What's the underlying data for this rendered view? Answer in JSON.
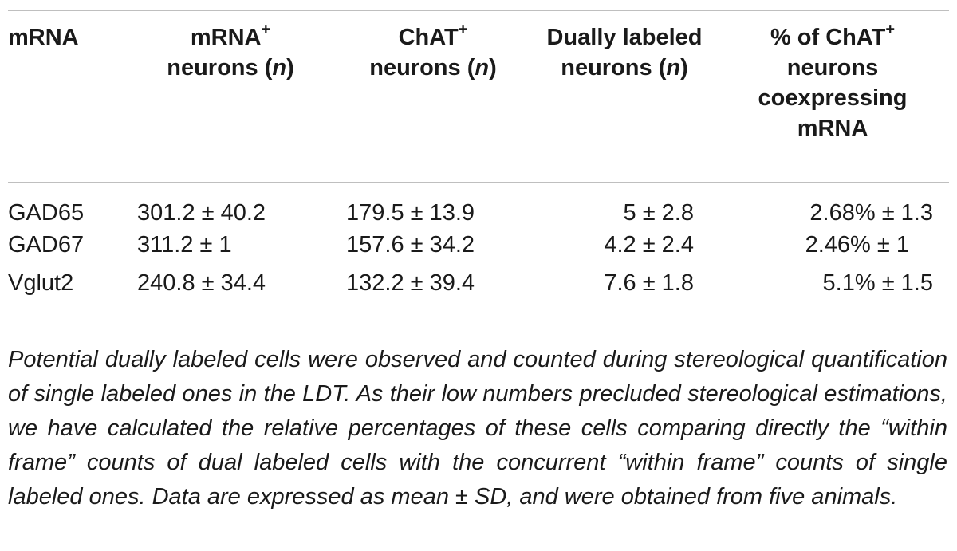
{
  "table": {
    "headers": {
      "col0": "mRNA",
      "col1_line1": "mRNA",
      "col1_sup": "+",
      "col1_line2": "neurons (",
      "col1_italic": "n",
      "col1_close": ")",
      "col2_line1": "ChAT",
      "col2_sup": "+",
      "col2_line2": "neurons (",
      "col2_italic": "n",
      "col2_close": ")",
      "col3_line1": "Dually labeled",
      "col3_line2": "neurons (",
      "col3_italic": "n",
      "col3_close": ")",
      "col4_line1": "% of ChAT",
      "col4_sup": "+",
      "col4_line2": "neurons",
      "col4_line3": "coexpressing",
      "col4_line4": "mRNA"
    },
    "rows": [
      {
        "mrna": "GAD65",
        "mrna_pos": "301.2 ± 40.2",
        "chat_pos": "179.5 ± 13.9",
        "dual": "5 ± 2.8",
        "percent": "2.68% ± 1.3"
      },
      {
        "mrna": "GAD67",
        "mrna_pos": "311.2 ± 1",
        "chat_pos": "157.6 ± 34.2",
        "dual": "4.2 ± 2.4",
        "percent": "2.46% ± 1"
      },
      {
        "mrna": "Vglut2",
        "mrna_pos": "240.8 ± 34.4",
        "chat_pos": "132.2 ± 39.4",
        "dual": "7.6 ± 1.8",
        "percent": "5.1% ± 1.5"
      }
    ]
  },
  "caption": "Potential dually labeled cells were observed and counted during stereological quantification of single labeled ones in the LDT. As their low numbers precluded stereological estimations, we have calculated the relative percentages of these cells comparing directly the “within frame” counts of dual labeled cells with the concurrent “within frame” counts of single labeled ones. Data are expressed as mean ± SD, and were obtained from five animals."
}
